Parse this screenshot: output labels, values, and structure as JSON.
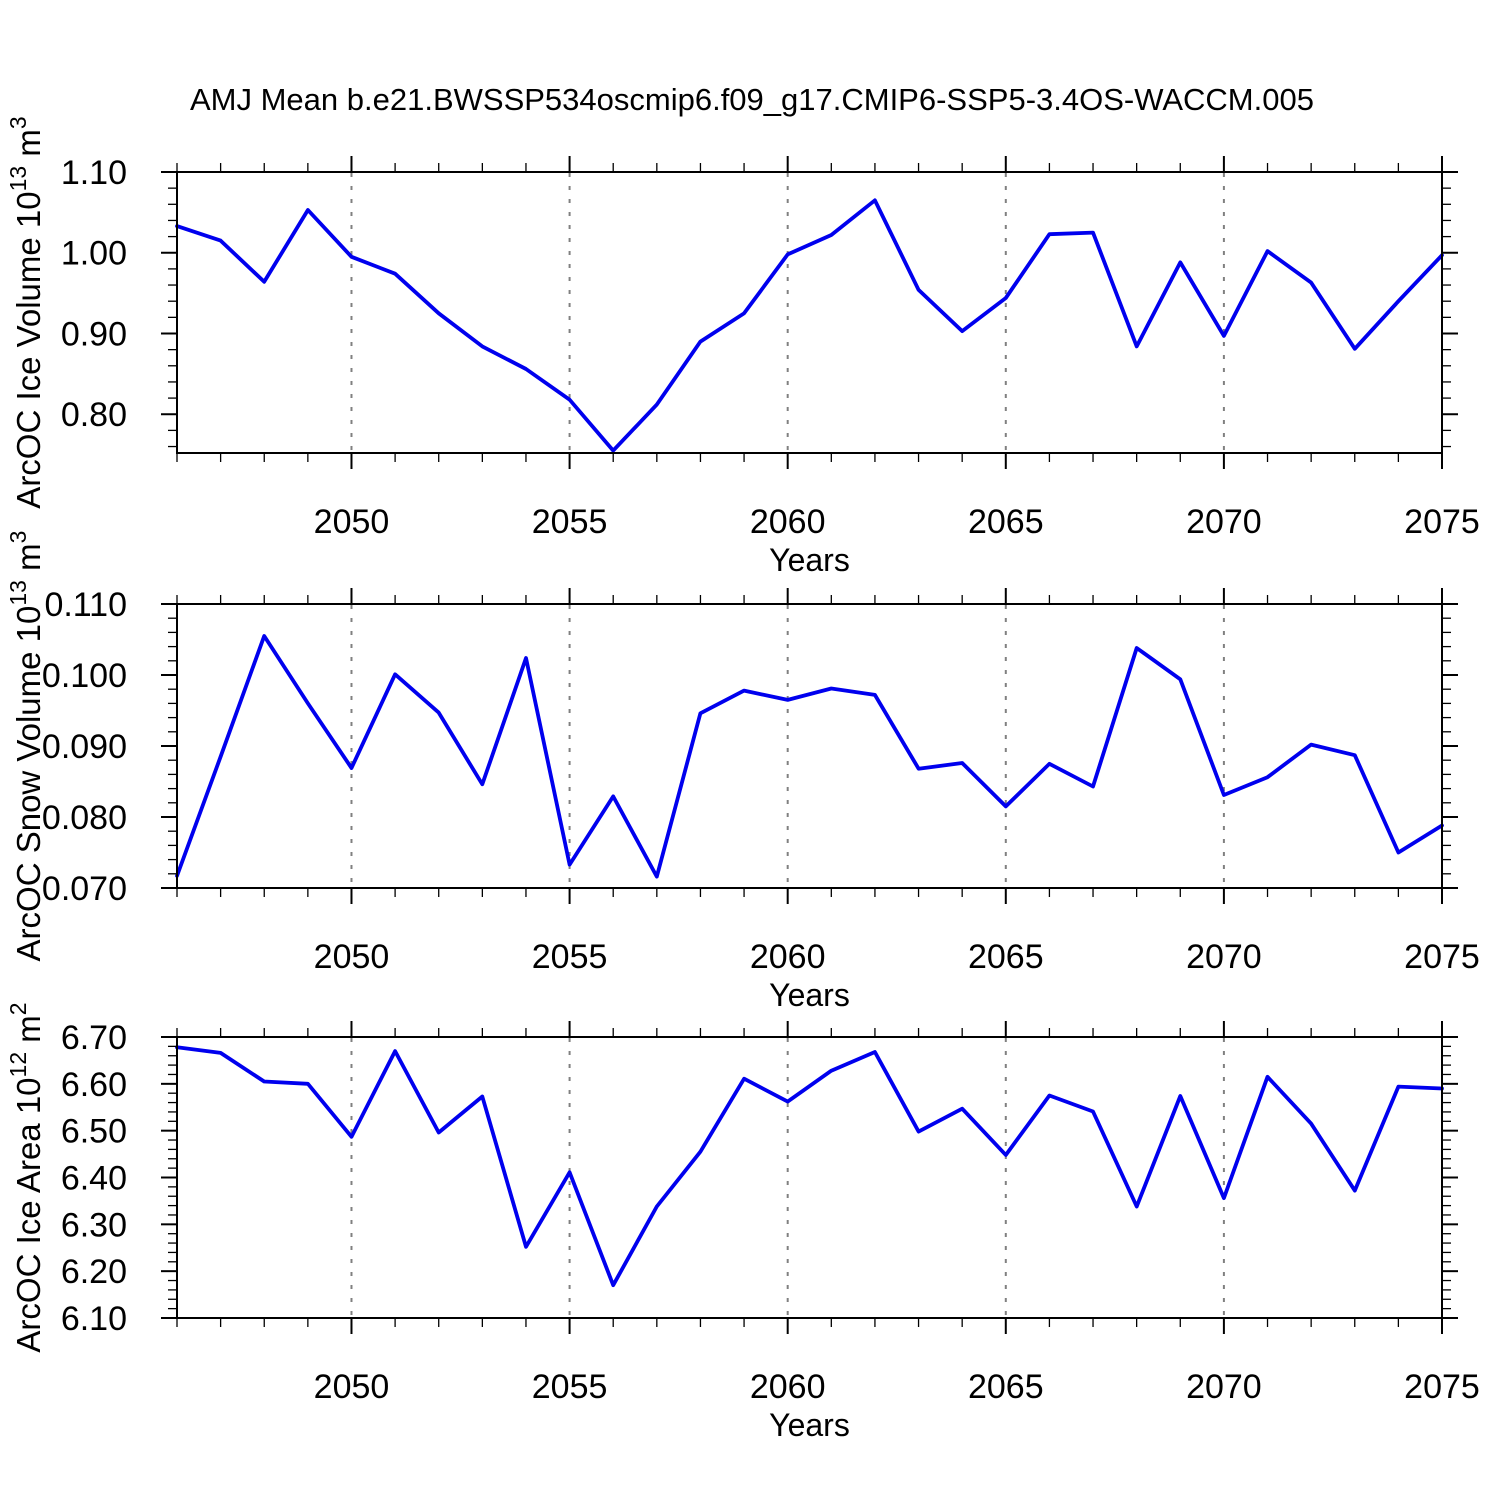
{
  "figure": {
    "title": "AMJ Mean b.e21.BWSSP534oscmip6.f09_g17.CMIP6-SSP5-3.4OS-WACCM.005"
  },
  "colors": {
    "line": "#0000EE",
    "grid": "#808080",
    "frame": "#000000"
  },
  "chart_data": [
    {
      "type": "line",
      "id": "ice-volume",
      "xlabel": "Years",
      "ylabel": "ArcOC Ice Volume 10^13 m^3",
      "ylabel_parts": [
        {
          "t": "ArcOC Ice Volume 10"
        },
        {
          "t": "13",
          "sup": true
        },
        {
          "t": " m"
        },
        {
          "t": "3",
          "sup": true
        }
      ],
      "xlim": [
        2046,
        2075
      ],
      "ylim": [
        0.752,
        1.1
      ],
      "xticks": [
        2050,
        2055,
        2060,
        2065,
        2070,
        2075
      ],
      "xtick_labels": [
        "2050",
        "2055",
        "2060",
        "2065",
        "2070",
        "2075"
      ],
      "grid_x": [
        2050,
        2055,
        2060,
        2065,
        2070
      ],
      "yticks": [
        0.8,
        0.9,
        1.0,
        1.1
      ],
      "ytick_labels": [
        "0.80",
        "0.90",
        "1.00",
        "1.10"
      ],
      "y_minor_step": 0.02,
      "x_minor_step": 1,
      "line_color": "#0000EE",
      "grid_color": "#808080",
      "x": [
        2046,
        2047,
        2048,
        2049,
        2050,
        2051,
        2052,
        2053,
        2054,
        2055,
        2056,
        2057,
        2058,
        2059,
        2060,
        2061,
        2062,
        2063,
        2064,
        2065,
        2066,
        2067,
        2068,
        2069,
        2070,
        2071,
        2072,
        2073,
        2074,
        2075
      ],
      "series": [
        {
          "name": "ArcOC Ice Volume",
          "values": [
            1.033,
            1.015,
            0.964,
            1.053,
            0.995,
            0.974,
            0.925,
            0.884,
            0.856,
            0.818,
            0.755,
            0.812,
            0.89,
            0.925,
            0.998,
            1.022,
            1.065,
            0.954,
            0.903,
            0.944,
            1.023,
            1.025,
            0.884,
            0.988,
            0.897,
            1.002,
            0.963,
            0.881,
            0.94,
            0.997
          ]
        }
      ]
    },
    {
      "type": "line",
      "id": "snow-volume",
      "xlabel": "Years",
      "ylabel": "ArcOC Snow Volume 10^13 m^3",
      "ylabel_parts": [
        {
          "t": "ArcOC Snow Volume 10"
        },
        {
          "t": "13",
          "sup": true
        },
        {
          "t": " m"
        },
        {
          "t": "3",
          "sup": true
        }
      ],
      "xlim": [
        2046,
        2075
      ],
      "ylim": [
        0.07,
        0.11
      ],
      "xticks": [
        2050,
        2055,
        2060,
        2065,
        2070,
        2075
      ],
      "xtick_labels": [
        "2050",
        "2055",
        "2060",
        "2065",
        "2070",
        "2075"
      ],
      "grid_x": [
        2050,
        2055,
        2060,
        2065,
        2070
      ],
      "yticks": [
        0.07,
        0.08,
        0.09,
        0.1,
        0.11
      ],
      "ytick_labels": [
        "0.070",
        "0.080",
        "0.090",
        "0.100",
        "0.110"
      ],
      "y_minor_step": 0.002,
      "x_minor_step": 1,
      "line_color": "#0000EE",
      "grid_color": "#808080",
      "x": [
        2046,
        2047,
        2048,
        2049,
        2050,
        2051,
        2052,
        2053,
        2054,
        2055,
        2056,
        2057,
        2058,
        2059,
        2060,
        2061,
        2062,
        2063,
        2064,
        2065,
        2066,
        2067,
        2068,
        2069,
        2070,
        2071,
        2072,
        2073,
        2074,
        2075
      ],
      "series": [
        {
          "name": "ArcOC Snow Volume",
          "values": [
            0.0717,
            0.0885,
            0.1055,
            0.096,
            0.0869,
            0.1001,
            0.0947,
            0.0846,
            0.1024,
            0.0733,
            0.0829,
            0.0716,
            0.0946,
            0.0978,
            0.0965,
            0.0981,
            0.0972,
            0.0868,
            0.0876,
            0.0815,
            0.0875,
            0.0843,
            0.1038,
            0.0994,
            0.0831,
            0.0856,
            0.0902,
            0.0887,
            0.075,
            0.0788
          ]
        }
      ]
    },
    {
      "type": "line",
      "id": "ice-area",
      "xlabel": "Years",
      "ylabel": "ArcOC Ice Area 10^12 m^2",
      "ylabel_parts": [
        {
          "t": "ArcOC Ice Area 10"
        },
        {
          "t": "12",
          "sup": true
        },
        {
          "t": " m"
        },
        {
          "t": "2",
          "sup": true
        }
      ],
      "xlim": [
        2046,
        2075
      ],
      "ylim": [
        6.1,
        6.7
      ],
      "xticks": [
        2050,
        2055,
        2060,
        2065,
        2070,
        2075
      ],
      "xtick_labels": [
        "2050",
        "2055",
        "2060",
        "2065",
        "2070",
        "2075"
      ],
      "grid_x": [
        2050,
        2055,
        2060,
        2065,
        2070
      ],
      "yticks": [
        6.1,
        6.2,
        6.3,
        6.4,
        6.5,
        6.6,
        6.7
      ],
      "ytick_labels": [
        "6.10",
        "6.20",
        "6.30",
        "6.40",
        "6.50",
        "6.60",
        "6.70"
      ],
      "y_minor_step": 0.02,
      "x_minor_step": 1,
      "line_color": "#0000EE",
      "grid_color": "#808080",
      "x": [
        2046,
        2047,
        2048,
        2049,
        2050,
        2051,
        2052,
        2053,
        2054,
        2055,
        2056,
        2057,
        2058,
        2059,
        2060,
        2061,
        2062,
        2063,
        2064,
        2065,
        2066,
        2067,
        2068,
        2069,
        2070,
        2071,
        2072,
        2073,
        2074,
        2075
      ],
      "series": [
        {
          "name": "ArcOC Ice Area",
          "values": [
            6.678,
            6.666,
            6.605,
            6.6,
            6.487,
            6.67,
            6.496,
            6.573,
            6.252,
            6.411,
            6.17,
            6.338,
            6.455,
            6.611,
            6.562,
            6.628,
            6.668,
            6.498,
            6.547,
            6.448,
            6.575,
            6.541,
            6.338,
            6.574,
            6.356,
            6.615,
            6.515,
            6.372,
            6.594,
            6.59
          ]
        }
      ]
    }
  ]
}
